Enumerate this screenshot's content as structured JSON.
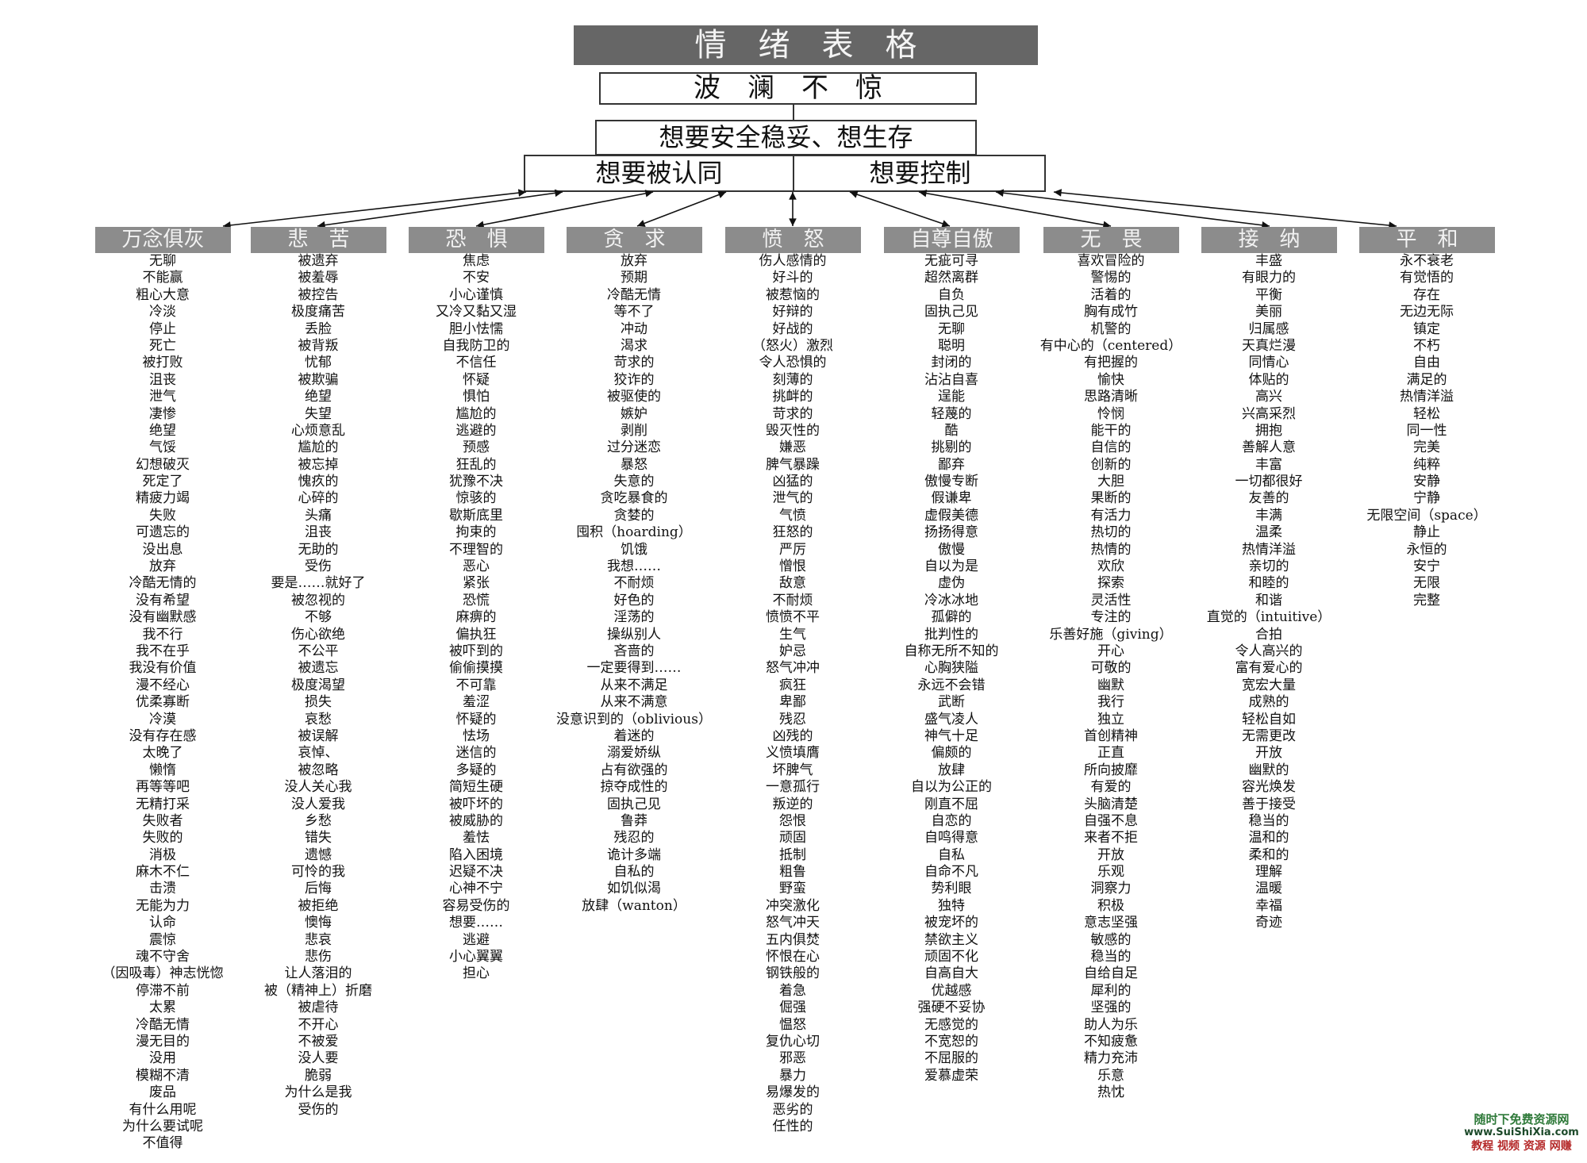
{
  "title": "情绪表格",
  "level1": "波澜不惊",
  "level2": "想要安全稳妥、想生存",
  "level3": {
    "left": "想要被认同",
    "right": "想要控制"
  },
  "categories": [
    {
      "name": "万念俱灰",
      "items": [
        "无聊",
        "不能赢",
        "粗心大意",
        "冷淡",
        "停止",
        "死亡",
        "被打败",
        "沮丧",
        "泄气",
        "凄惨",
        "绝望",
        "气馁",
        "幻想破灭",
        "死定了",
        "精疲力竭",
        "失败",
        "可遗忘的",
        "没出息",
        "放弃",
        "冷酷无情的",
        "没有希望",
        "没有幽默感",
        "我不行",
        "我不在乎",
        "我没有价值",
        "漫不经心",
        "优柔寡断",
        "冷漠",
        "没有存在感",
        "太晚了",
        "懒惰",
        "再等等吧",
        "无精打采",
        "失败者",
        "失败的",
        "消极",
        "麻木不仁",
        "击溃",
        "无能为力",
        "认命",
        "震惊",
        "魂不守舍",
        "（因吸毒）神志恍惚",
        "停滞不前",
        "太累",
        "冷酷无情",
        "漫无目的",
        "没用",
        "模糊不清",
        "废品",
        "有什么用呢",
        "为什么要试呢",
        "不值得"
      ]
    },
    {
      "name": "悲苦",
      "items": [
        "被遗弃",
        "被羞辱",
        "被控告",
        "极度痛苦",
        "丢脸",
        "被背叛",
        "忧郁",
        "被欺骗",
        "绝望",
        "失望",
        "心烦意乱",
        "尴尬的",
        "被忘掉",
        "愧疚的",
        "心碎的",
        "头痛",
        "沮丧",
        "无助的",
        "受伤",
        "要是……就好了",
        "被忽视的",
        "不够",
        "伤心欲绝",
        "不公平",
        "被遗忘",
        "极度渴望",
        "损失",
        "哀愁",
        "被误解",
        "哀悼、",
        "被忽略",
        "没人关心我",
        "没人爱我",
        "乡愁",
        "错失",
        "遗憾",
        "可怜的我",
        "后悔",
        "被拒绝",
        "懊悔",
        "悲哀",
        "悲伤",
        "让人落泪的",
        "被（精神上）折磨",
        "被虐待",
        "不开心",
        "不被爱",
        "没人要",
        "脆弱",
        "为什么是我",
        "受伤的"
      ]
    },
    {
      "name": "恐惧",
      "items": [
        "焦虑",
        "不安",
        "小心谨慎",
        "又冷又黏又湿",
        "胆小怯懦",
        "自我防卫的",
        "不信任",
        "怀疑",
        "惧怕",
        "尴尬的",
        "逃避的",
        "预感",
        "狂乱的",
        "犹豫不决",
        "惊骇的",
        "歇斯底里",
        "拘束的",
        "不理智的",
        "恶心",
        "紧张",
        "恐慌",
        "麻痹的",
        "偏执狂",
        "被吓到的",
        "偷偷摸摸",
        "不可靠",
        "羞涩",
        "怀疑的",
        "怯场",
        "迷信的",
        "多疑的",
        "简短生硬",
        "被吓坏的",
        "被威胁的",
        "羞怯",
        "陷入困境",
        "迟疑不决",
        "心神不宁",
        "容易受伤的",
        "想要……",
        "逃避",
        "小心翼翼",
        "担心"
      ]
    },
    {
      "name": "贪求",
      "items": [
        "放弃",
        "预期",
        "冷酷无情",
        "等不了",
        "冲动",
        "渴求",
        "苛求的",
        "狡诈的",
        "被驱使的",
        "嫉妒",
        "剥削",
        "过分迷恋",
        "暴怒",
        "失意的",
        "贪吃暴食的",
        "贪婪的",
        "囤积（hoarding）",
        "饥饿",
        "我想……",
        "不耐烦",
        "好色的",
        "淫荡的",
        "操纵别人",
        "吝啬的",
        "一定要得到……",
        "从来不满足",
        "从来不满意",
        "没意识到的（oblivious）",
        "着迷的",
        "溺爱娇纵",
        "占有欲强的",
        "掠夺成性的",
        "固执己见",
        "鲁莽",
        "残忍的",
        "诡计多端",
        "自私的",
        "如饥似渴",
        "放肆（wanton）"
      ]
    },
    {
      "name": "愤怒",
      "items": [
        "伤人感情的",
        "好斗的",
        "被惹恼的",
        "好辩的",
        "好战的",
        "（怒火）激烈",
        "令人恐惧的",
        "刻薄的",
        "挑衅的",
        "苛求的",
        "毁灭性的",
        "嫌恶",
        "脾气暴躁",
        "凶猛的",
        "泄气的",
        "气愤",
        "狂怒的",
        "严厉",
        "憎恨",
        "敌意",
        "不耐烦",
        "愤愤不平",
        "生气",
        "妒忌",
        "怒气冲冲",
        "疯狂",
        "卑鄙",
        "残忍",
        "凶残的",
        "义愤填膺",
        "坏脾气",
        "一意孤行",
        "叛逆的",
        "怨恨",
        "顽固",
        "抵制",
        "粗鲁",
        "野蛮",
        "冲突激化",
        "怒气冲天",
        "五内俱焚",
        "怀恨在心",
        "钢铁般的",
        "着急",
        "倔强",
        "愠怒",
        "复仇心切",
        "邪恶",
        "暴力",
        "易爆发的",
        "恶劣的",
        "任性的"
      ]
    },
    {
      "name": "自尊自傲",
      "items": [
        "无疵可寻",
        "超然离群",
        "自负",
        "固执己见",
        "无聊",
        "聪明",
        "封闭的",
        "沾沾自喜",
        "逞能",
        "轻蔑的",
        "酷",
        "挑剔的",
        "鄙弃",
        "傲慢专断",
        "假谦卑",
        "虚假美德",
        "扬扬得意",
        "傲慢",
        "自以为是",
        "虚伪",
        "冷冰冰地",
        "孤僻的",
        "批判性的",
        "自称无所不知的",
        "心胸狭隘",
        "永远不会错",
        "武断",
        "盛气凌人",
        "神气十足",
        "偏颇的",
        "放肆",
        "自以为公正的",
        "刚直不屈",
        "自恋的",
        "自鸣得意",
        "自私",
        "自命不凡",
        "势利眼",
        "独特",
        "被宠坏的",
        "禁欲主义",
        "顽固不化",
        "自高自大",
        "优越感",
        "强硬不妥协",
        "无感觉的",
        "不宽恕的",
        "不屈服的",
        "爱慕虚荣"
      ]
    },
    {
      "name": "无畏",
      "items": [
        "喜欢冒险的",
        "警惕的",
        "活着的",
        "胸有成竹",
        "机警的",
        "有中心的（centered）",
        "有把握的",
        "愉快",
        "思路清晰",
        "怜悯",
        "能干的",
        "自信的",
        "创新的",
        "大胆",
        "果断的",
        "有活力",
        "热切的",
        "热情的",
        "欢欣",
        "探索",
        "灵活性",
        "专注的",
        "乐善好施（giving）",
        "开心",
        "可敬的",
        "幽默",
        "我行",
        "独立",
        "首创精神",
        "正直",
        "所向披靡",
        "有爱的",
        "头脑清楚",
        "自强不息",
        "来者不拒",
        "开放",
        "乐观",
        "洞察力",
        "积极",
        "意志坚强",
        "敏感的",
        "稳当的",
        "自给自足",
        "犀利的",
        "坚强的",
        "助人为乐",
        "不知疲惫",
        "精力充沛",
        "乐意",
        "热忱"
      ]
    },
    {
      "name": "接纳",
      "items": [
        "丰盛",
        "有眼力的",
        "平衡",
        "美丽",
        "归属感",
        "天真烂漫",
        "同情心",
        "体贴的",
        "高兴",
        "兴高采烈",
        "拥抱",
        "善解人意",
        "丰富",
        "一切都很好",
        "友善的",
        "丰满",
        "温柔",
        "热情洋溢",
        "亲切的",
        "和睦的",
        "和谐",
        "直觉的（intuitive）",
        "合拍",
        "令人高兴的",
        "富有爱心的",
        "宽宏大量",
        "成熟的",
        "轻松自如",
        "无需更改",
        "开放",
        "幽默的",
        "容光焕发",
        "善于接受",
        "稳当的",
        "温和的",
        "柔和的",
        "理解",
        "温暖",
        "幸福",
        "奇迹"
      ]
    },
    {
      "name": "平和",
      "items": [
        "永不衰老",
        "有觉悟的",
        "存在",
        "无边无际",
        "镇定",
        "不朽",
        "自由",
        "满足的",
        "热情洋溢",
        "轻松",
        "同一性",
        "完美",
        "纯粹",
        "安静",
        "宁静",
        "无限空间（space）",
        "静止",
        "永恒的",
        "安宁",
        "无限",
        "完整"
      ]
    }
  ],
  "watermark": {
    "line1": "随时下免费资源网",
    "line2": "www.SuiShiXia.com",
    "line3": "教程 视频 资源 网赚"
  },
  "colors": {
    "title_bg": "#666666",
    "header_bg": "#8c8c8c",
    "watermark_green": "#2f7a3a",
    "watermark_red": "#b52a2a"
  }
}
